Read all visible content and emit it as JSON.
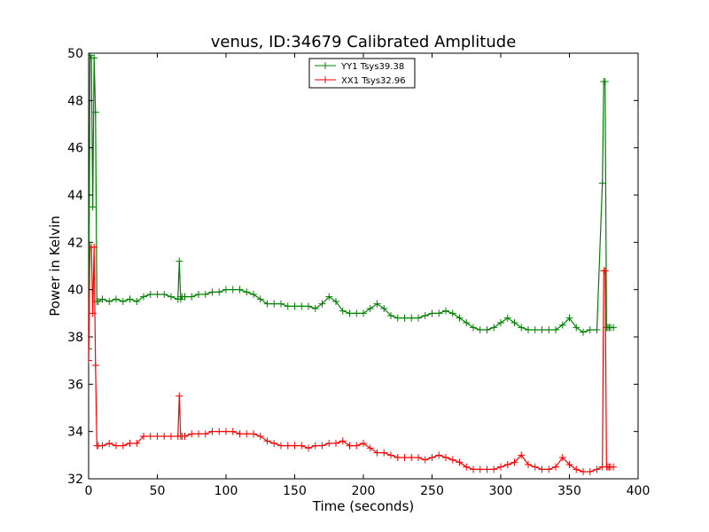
{
  "chart_data": {
    "type": "line",
    "title": "venus, ID:34679 Calibrated Amplitude",
    "xlabel": "Time (seconds)",
    "ylabel": "Power in Kelvin",
    "xlim": [
      0,
      400
    ],
    "ylim": [
      32,
      50
    ],
    "xticks": [
      "0",
      "50",
      "100",
      "150",
      "200",
      "250",
      "300",
      "350",
      "400"
    ],
    "yticks": [
      "32",
      "34",
      "36",
      "38",
      "40",
      "42",
      "44",
      "46",
      "48",
      "50"
    ],
    "grid": false,
    "legend_position": "upper center",
    "marker": "+",
    "series": [
      {
        "name": "YY1 Tsys39.38",
        "color": "#008000",
        "x": [
          0,
          1,
          2,
          3,
          4,
          5,
          6,
          7,
          10,
          15,
          20,
          25,
          30,
          35,
          40,
          45,
          50,
          55,
          60,
          65,
          66,
          67,
          68,
          70,
          75,
          80,
          85,
          90,
          95,
          100,
          105,
          110,
          115,
          120,
          125,
          130,
          135,
          140,
          145,
          150,
          155,
          160,
          165,
          170,
          175,
          180,
          185,
          190,
          195,
          200,
          205,
          210,
          215,
          220,
          225,
          230,
          235,
          240,
          245,
          250,
          255,
          260,
          265,
          270,
          275,
          280,
          285,
          290,
          295,
          300,
          305,
          310,
          315,
          320,
          325,
          330,
          335,
          340,
          345,
          350,
          355,
          360,
          365,
          370,
          374,
          375,
          376,
          377,
          378,
          379,
          380,
          382
        ],
        "y": [
          37.5,
          49.9,
          49.8,
          43.5,
          49.8,
          47.5,
          39.5,
          39.5,
          39.6,
          39.5,
          39.6,
          39.5,
          39.6,
          39.5,
          39.7,
          39.8,
          39.8,
          39.8,
          39.7,
          39.6,
          41.2,
          39.6,
          39.7,
          39.7,
          39.7,
          39.8,
          39.8,
          39.9,
          39.9,
          40.0,
          40.0,
          40.0,
          39.9,
          39.8,
          39.6,
          39.4,
          39.4,
          39.4,
          39.3,
          39.3,
          39.3,
          39.3,
          39.2,
          39.4,
          39.7,
          39.5,
          39.1,
          39.0,
          39.0,
          39.0,
          39.2,
          39.4,
          39.2,
          38.9,
          38.8,
          38.8,
          38.8,
          38.8,
          38.9,
          39.0,
          39.0,
          39.1,
          39.0,
          38.8,
          38.6,
          38.4,
          38.3,
          38.3,
          38.4,
          38.6,
          38.8,
          38.6,
          38.4,
          38.3,
          38.3,
          38.3,
          38.3,
          38.3,
          38.5,
          38.8,
          38.4,
          38.2,
          38.3,
          38.3,
          44.5,
          48.8,
          48.8,
          38.4,
          38.4,
          38.4,
          38.4,
          38.4
        ]
      },
      {
        "name": "XX1 Tsys32.96",
        "color": "#ff0000",
        "x": [
          0,
          1,
          2,
          3,
          4,
          5,
          6,
          7,
          10,
          15,
          20,
          25,
          30,
          35,
          40,
          45,
          50,
          55,
          60,
          65,
          66,
          67,
          68,
          70,
          75,
          80,
          85,
          90,
          95,
          100,
          105,
          110,
          115,
          120,
          125,
          130,
          135,
          140,
          145,
          150,
          155,
          160,
          165,
          170,
          175,
          180,
          185,
          190,
          195,
          200,
          205,
          210,
          215,
          220,
          225,
          230,
          235,
          240,
          245,
          250,
          255,
          260,
          265,
          270,
          275,
          280,
          285,
          290,
          295,
          300,
          305,
          310,
          315,
          320,
          325,
          330,
          335,
          340,
          345,
          350,
          355,
          360,
          365,
          370,
          374,
          375,
          376,
          377,
          378,
          379,
          380,
          382
        ],
        "y": [
          37.0,
          41.8,
          41.8,
          39.0,
          41.8,
          36.8,
          33.4,
          33.4,
          33.4,
          33.5,
          33.4,
          33.4,
          33.5,
          33.5,
          33.8,
          33.8,
          33.8,
          33.8,
          33.8,
          33.8,
          35.5,
          33.8,
          33.8,
          33.8,
          33.9,
          33.9,
          33.9,
          34.0,
          34.0,
          34.0,
          34.0,
          33.9,
          33.9,
          33.9,
          33.8,
          33.6,
          33.5,
          33.4,
          33.4,
          33.4,
          33.4,
          33.3,
          33.4,
          33.4,
          33.5,
          33.5,
          33.6,
          33.4,
          33.4,
          33.5,
          33.3,
          33.1,
          33.1,
          33.0,
          32.9,
          32.9,
          32.9,
          32.9,
          32.8,
          32.9,
          33.0,
          32.9,
          32.8,
          32.7,
          32.5,
          32.4,
          32.4,
          32.4,
          32.4,
          32.5,
          32.6,
          32.7,
          33.0,
          32.6,
          32.5,
          32.4,
          32.4,
          32.5,
          32.9,
          32.6,
          32.4,
          32.3,
          32.3,
          32.4,
          32.5,
          40.8,
          40.8,
          32.5,
          32.5,
          32.5,
          32.5,
          32.5
        ]
      }
    ]
  }
}
